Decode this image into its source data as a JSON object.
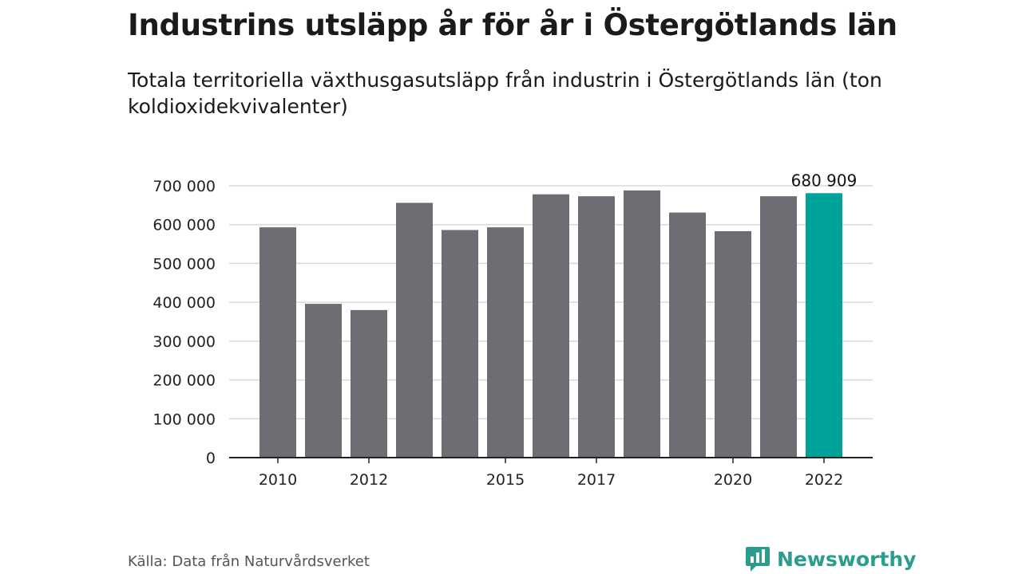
{
  "header": {
    "title": "Industrins utsläpp år för år i Östergötlands län",
    "subtitle": "Totala territoriella växthusgasutsläpp från industrin i Östergötlands län (ton koldioxidekvivalenter)"
  },
  "footer": {
    "source": "Källa: Data från Naturvårdsverket",
    "brand": "Newsworthy"
  },
  "colors": {
    "bar": "#6e6d73",
    "highlight": "#00a39a",
    "grid": "#d9d9d9",
    "axis": "#222222",
    "brand": "#2a9d8f"
  },
  "chart_data": {
    "type": "bar",
    "title": "Industrins utsläpp år för år i Östergötlands län",
    "xlabel": "",
    "ylabel": "",
    "categories": [
      "2010",
      "2011",
      "2012",
      "2013",
      "2014",
      "2015",
      "2016",
      "2017",
      "2018",
      "2019",
      "2020",
      "2021",
      "2022"
    ],
    "values": [
      593000,
      396000,
      380000,
      656000,
      586000,
      593000,
      678000,
      673000,
      688000,
      631000,
      583000,
      673000,
      680909
    ],
    "highlight_index": 12,
    "value_label": "680 909",
    "ylim": [
      0,
      700000
    ],
    "yticks": [
      0,
      100000,
      200000,
      300000,
      400000,
      500000,
      600000,
      700000
    ],
    "ytick_labels": [
      "0",
      "100 000",
      "200 000",
      "300 000",
      "400 000",
      "500 000",
      "600 000",
      "700 000"
    ],
    "xtick_labels": [
      "2010",
      "",
      "2012",
      "",
      "",
      "2015",
      "",
      "2017",
      "",
      "",
      "2020",
      "",
      "2022"
    ],
    "grid": true
  }
}
